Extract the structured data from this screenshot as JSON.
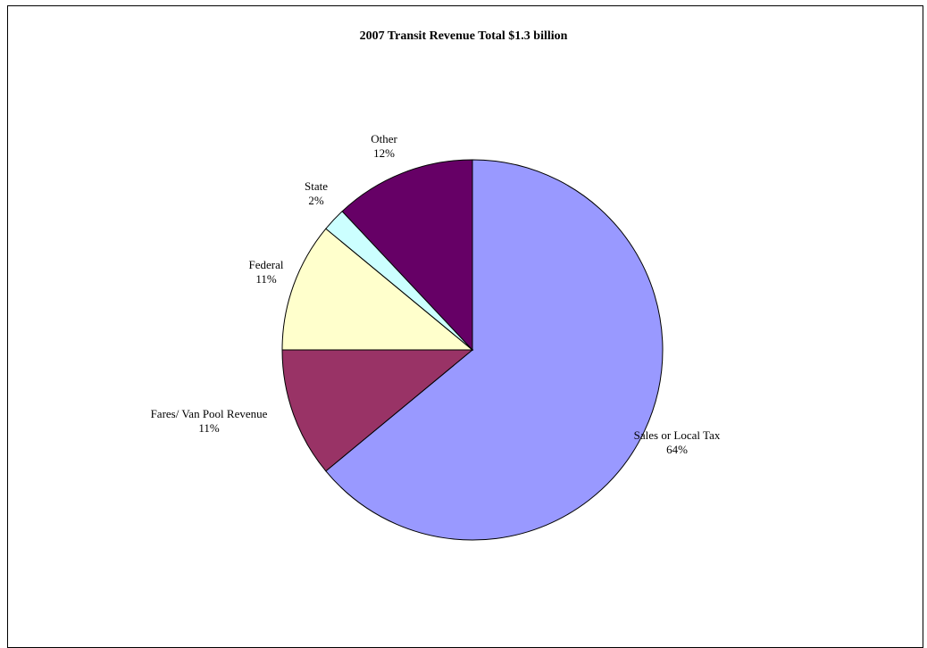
{
  "chart_data": {
    "type": "pie",
    "title": "2007 Transit Revenue Total $1.3 billion",
    "categories": [
      "Sales or Local Tax",
      "Fares/ Van Pool Revenue",
      "Federal",
      "State",
      "Other"
    ],
    "values": [
      64,
      11,
      11,
      2,
      12
    ],
    "labels": [
      "64%",
      "11%",
      "11%",
      "2%",
      "12%"
    ],
    "colors": [
      "#9999ff",
      "#993366",
      "#ffffcc",
      "#ccffff",
      "#660066"
    ],
    "legend": "none",
    "start": "12 o'clock",
    "direction": "clockwise"
  }
}
